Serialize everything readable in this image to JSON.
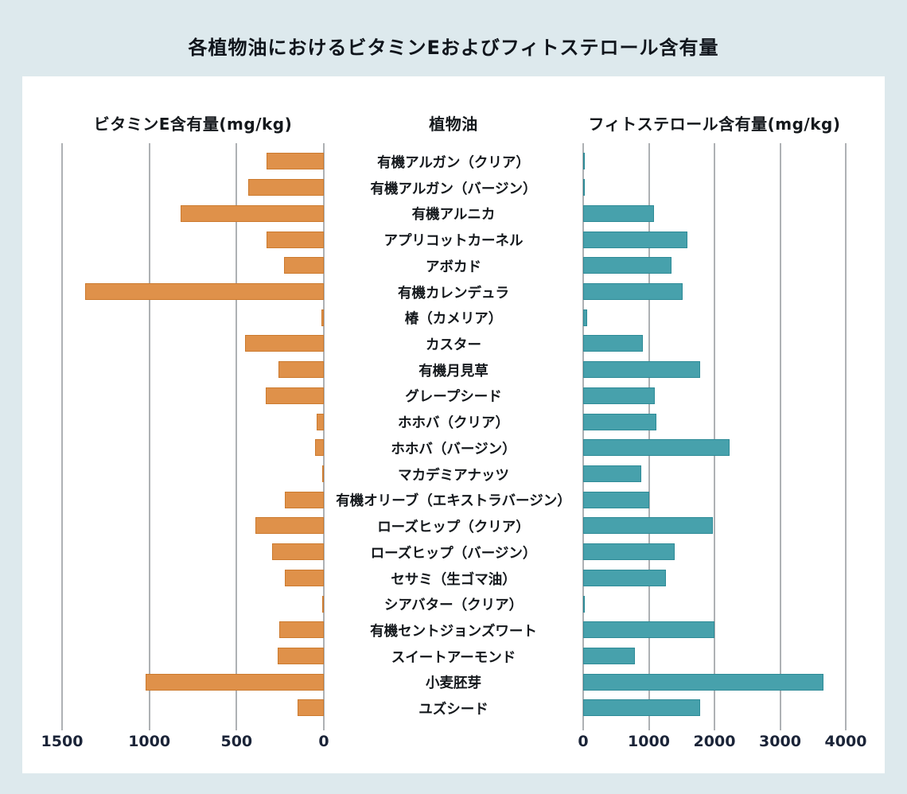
{
  "title": "各植物油におけるビタミンEおよびフィトステロール含有量",
  "colors": {
    "background": "#dde9ed",
    "panel": "#ffffff",
    "vitamin_e_bar": "#df914a",
    "phytosterol_bar": "#47a1ac",
    "gridline": "#aeb1b4",
    "text": "#14181c",
    "axis_text": "#1b2438"
  },
  "chart_data": {
    "type": "bar",
    "variant": "diverging-horizontal",
    "title": "各植物油におけるビタミンEおよびフィトステロール含有量",
    "center_column_label": "植物油",
    "grid": true,
    "legend": "none",
    "categories": [
      "有機アルガン（クリア）",
      "有機アルガン（バージン）",
      "有機アルニカ",
      "アプリコットカーネル",
      "アボカド",
      "有機カレンデュラ",
      "椿（カメリア）",
      "カスター",
      "有機月見草",
      "グレープシード",
      "ホホバ（クリア）",
      "ホホバ（バージン）",
      "マカデミアナッツ",
      "有機オリーブ（エキストラバージン）",
      "ローズヒップ（クリア）",
      "ローズヒップ（バージン）",
      "セサミ（生ゴマ油）",
      "シアバター（クリア）",
      "有機セントジョンズワート",
      "スイートアーモンド",
      "小麦胚芽",
      "ユズシード"
    ],
    "series": [
      {
        "name": "ビタミンE含有量(mg/kg)",
        "side": "left",
        "color": "#df914a",
        "axis_range": [
          0,
          1500
        ],
        "ticks": [
          1500,
          1000,
          500,
          0
        ],
        "tick_labels": [
          "1500",
          "1000",
          "500",
          "0"
        ],
        "values": [
          330,
          435,
          820,
          330,
          230,
          1370,
          15,
          450,
          260,
          335,
          40,
          50,
          10,
          225,
          390,
          295,
          225,
          10,
          255,
          265,
          1020,
          150
        ]
      },
      {
        "name": "フィトステロール含有量(mg/kg)",
        "side": "right",
        "color": "#47a1ac",
        "axis_range": [
          0,
          4000
        ],
        "ticks": [
          0,
          1000,
          2000,
          3000,
          4000
        ],
        "tick_labels": [
          "0",
          "1000",
          "2000",
          "3000",
          "4000"
        ],
        "values": [
          20,
          20,
          1080,
          1590,
          1350,
          1520,
          60,
          910,
          1780,
          1090,
          1120,
          2230,
          880,
          1010,
          1970,
          1390,
          1260,
          20,
          2000,
          790,
          3660,
          1780
        ]
      }
    ]
  }
}
